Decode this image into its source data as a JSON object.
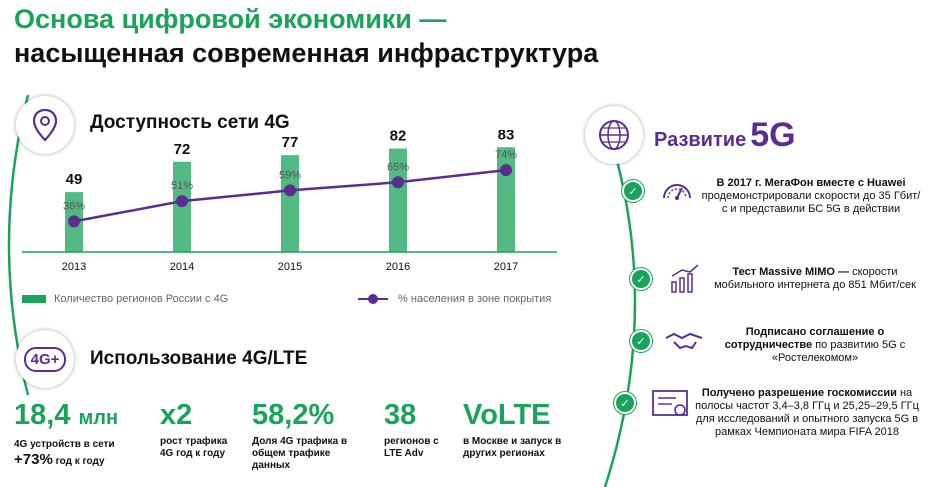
{
  "title": {
    "line1": "Основа цифровой экономики —",
    "line2": "насыщенная современная инфраструктура"
  },
  "availability": {
    "title": "Доступность сети 4G",
    "legend_regions": "Количество регионов России с 4G",
    "legend_population": "% населения в зоне покрытия"
  },
  "chart_data": {
    "type": "bar",
    "categories": [
      "2013",
      "2014",
      "2015",
      "2016",
      "2017"
    ],
    "series": [
      {
        "name": "Количество регионов России с 4G",
        "type": "bar",
        "values": [
          49,
          72,
          77,
          82,
          83
        ]
      },
      {
        "name": "% населения в зоне покрытия",
        "type": "line",
        "values": [
          36,
          51,
          59,
          65,
          74
        ],
        "labels": [
          "36%",
          "51%",
          "59%",
          "65%",
          "74%"
        ]
      }
    ],
    "bar_color": "#1aa35a",
    "line_color": "#5c2d91",
    "grid": false,
    "legend_position": "bottom"
  },
  "usage": {
    "title": "Использование 4G/LTE",
    "icon_label": "4G+",
    "stats": [
      {
        "big": "18,4",
        "unit": "млн",
        "desc": "4G устройств в сети",
        "growth": "+73%",
        "growth_suffix": "год к году"
      },
      {
        "big": "x2",
        "desc": "рост трафика 4G год к году"
      },
      {
        "big": "58,2%",
        "desc": "Доля 4G трафика в общем трафике данных"
      },
      {
        "big": "38",
        "desc": "регионов с LTE Adv"
      },
      {
        "big": "VoLTE",
        "desc": "в Москве и запуск в других регионах"
      }
    ]
  },
  "g5": {
    "title": "Развитие",
    "title_big": "5G",
    "items": [
      {
        "bold": "В 2017 г. МегаФон вместе с Huawei",
        "text": "продемонстрировали скорости до 35 Гбит/с и представили БС 5G в действии"
      },
      {
        "bold": "Тест Massive MIMO —",
        "text": "скорости мобильного интернета до 851 Мбит/сек"
      },
      {
        "bold": "Подписано соглашение о сотрудничестве",
        "text": "по развитию 5G с «Ростелекомом»"
      },
      {
        "bold": "Получено разрешение госкомиссии",
        "text": "на полосы частот 3,4–3,8 ГГц и 25,25–29,5 ГГц для исследований и опытного запуска 5G в рамках Чемпионата мира FIFA 2018"
      }
    ],
    "check_glyph": "✓"
  },
  "colors": {
    "green": "#1aa35a",
    "purple": "#5c2d91"
  }
}
